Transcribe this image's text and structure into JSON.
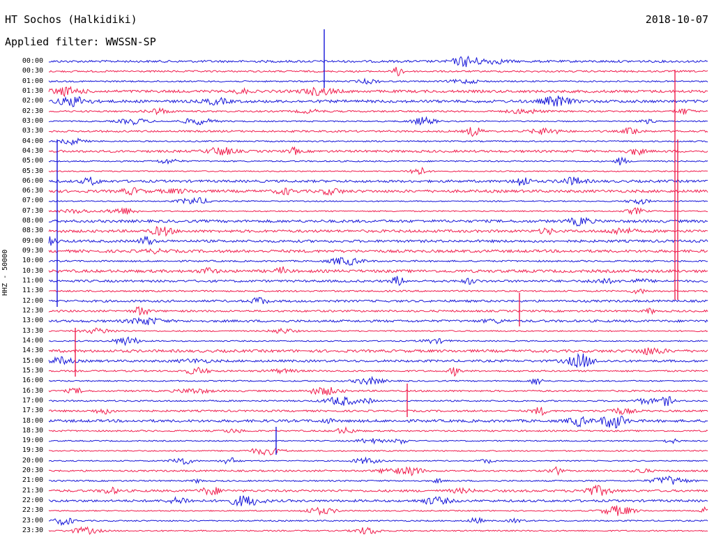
{
  "header": {
    "station": "HT Sochos (Halkidiki)",
    "date": "2018-10-07",
    "filter_label": "Applied filter: WWSSN-SP"
  },
  "axis": {
    "channel_label": "HHZ - 50000"
  },
  "times": [
    "00:00",
    "00:30",
    "01:00",
    "01:30",
    "02:00",
    "02:30",
    "03:00",
    "03:30",
    "04:00",
    "04:30",
    "05:00",
    "05:30",
    "06:00",
    "06:30",
    "07:00",
    "07:30",
    "08:00",
    "08:30",
    "09:00",
    "09:30",
    "10:00",
    "10:30",
    "11:00",
    "11:30",
    "12:00",
    "12:30",
    "13:00",
    "13:30",
    "14:00",
    "14:30",
    "15:00",
    "15:30",
    "16:00",
    "16:30",
    "17:00",
    "17:30",
    "18:00",
    "18:30",
    "19:00",
    "19:30",
    "20:00",
    "20:30",
    "21:00",
    "21:30",
    "22:00",
    "22:30",
    "23:00",
    "23:30"
  ],
  "colors": {
    "even": "#1414d8",
    "odd": "#f01c4c"
  }
}
